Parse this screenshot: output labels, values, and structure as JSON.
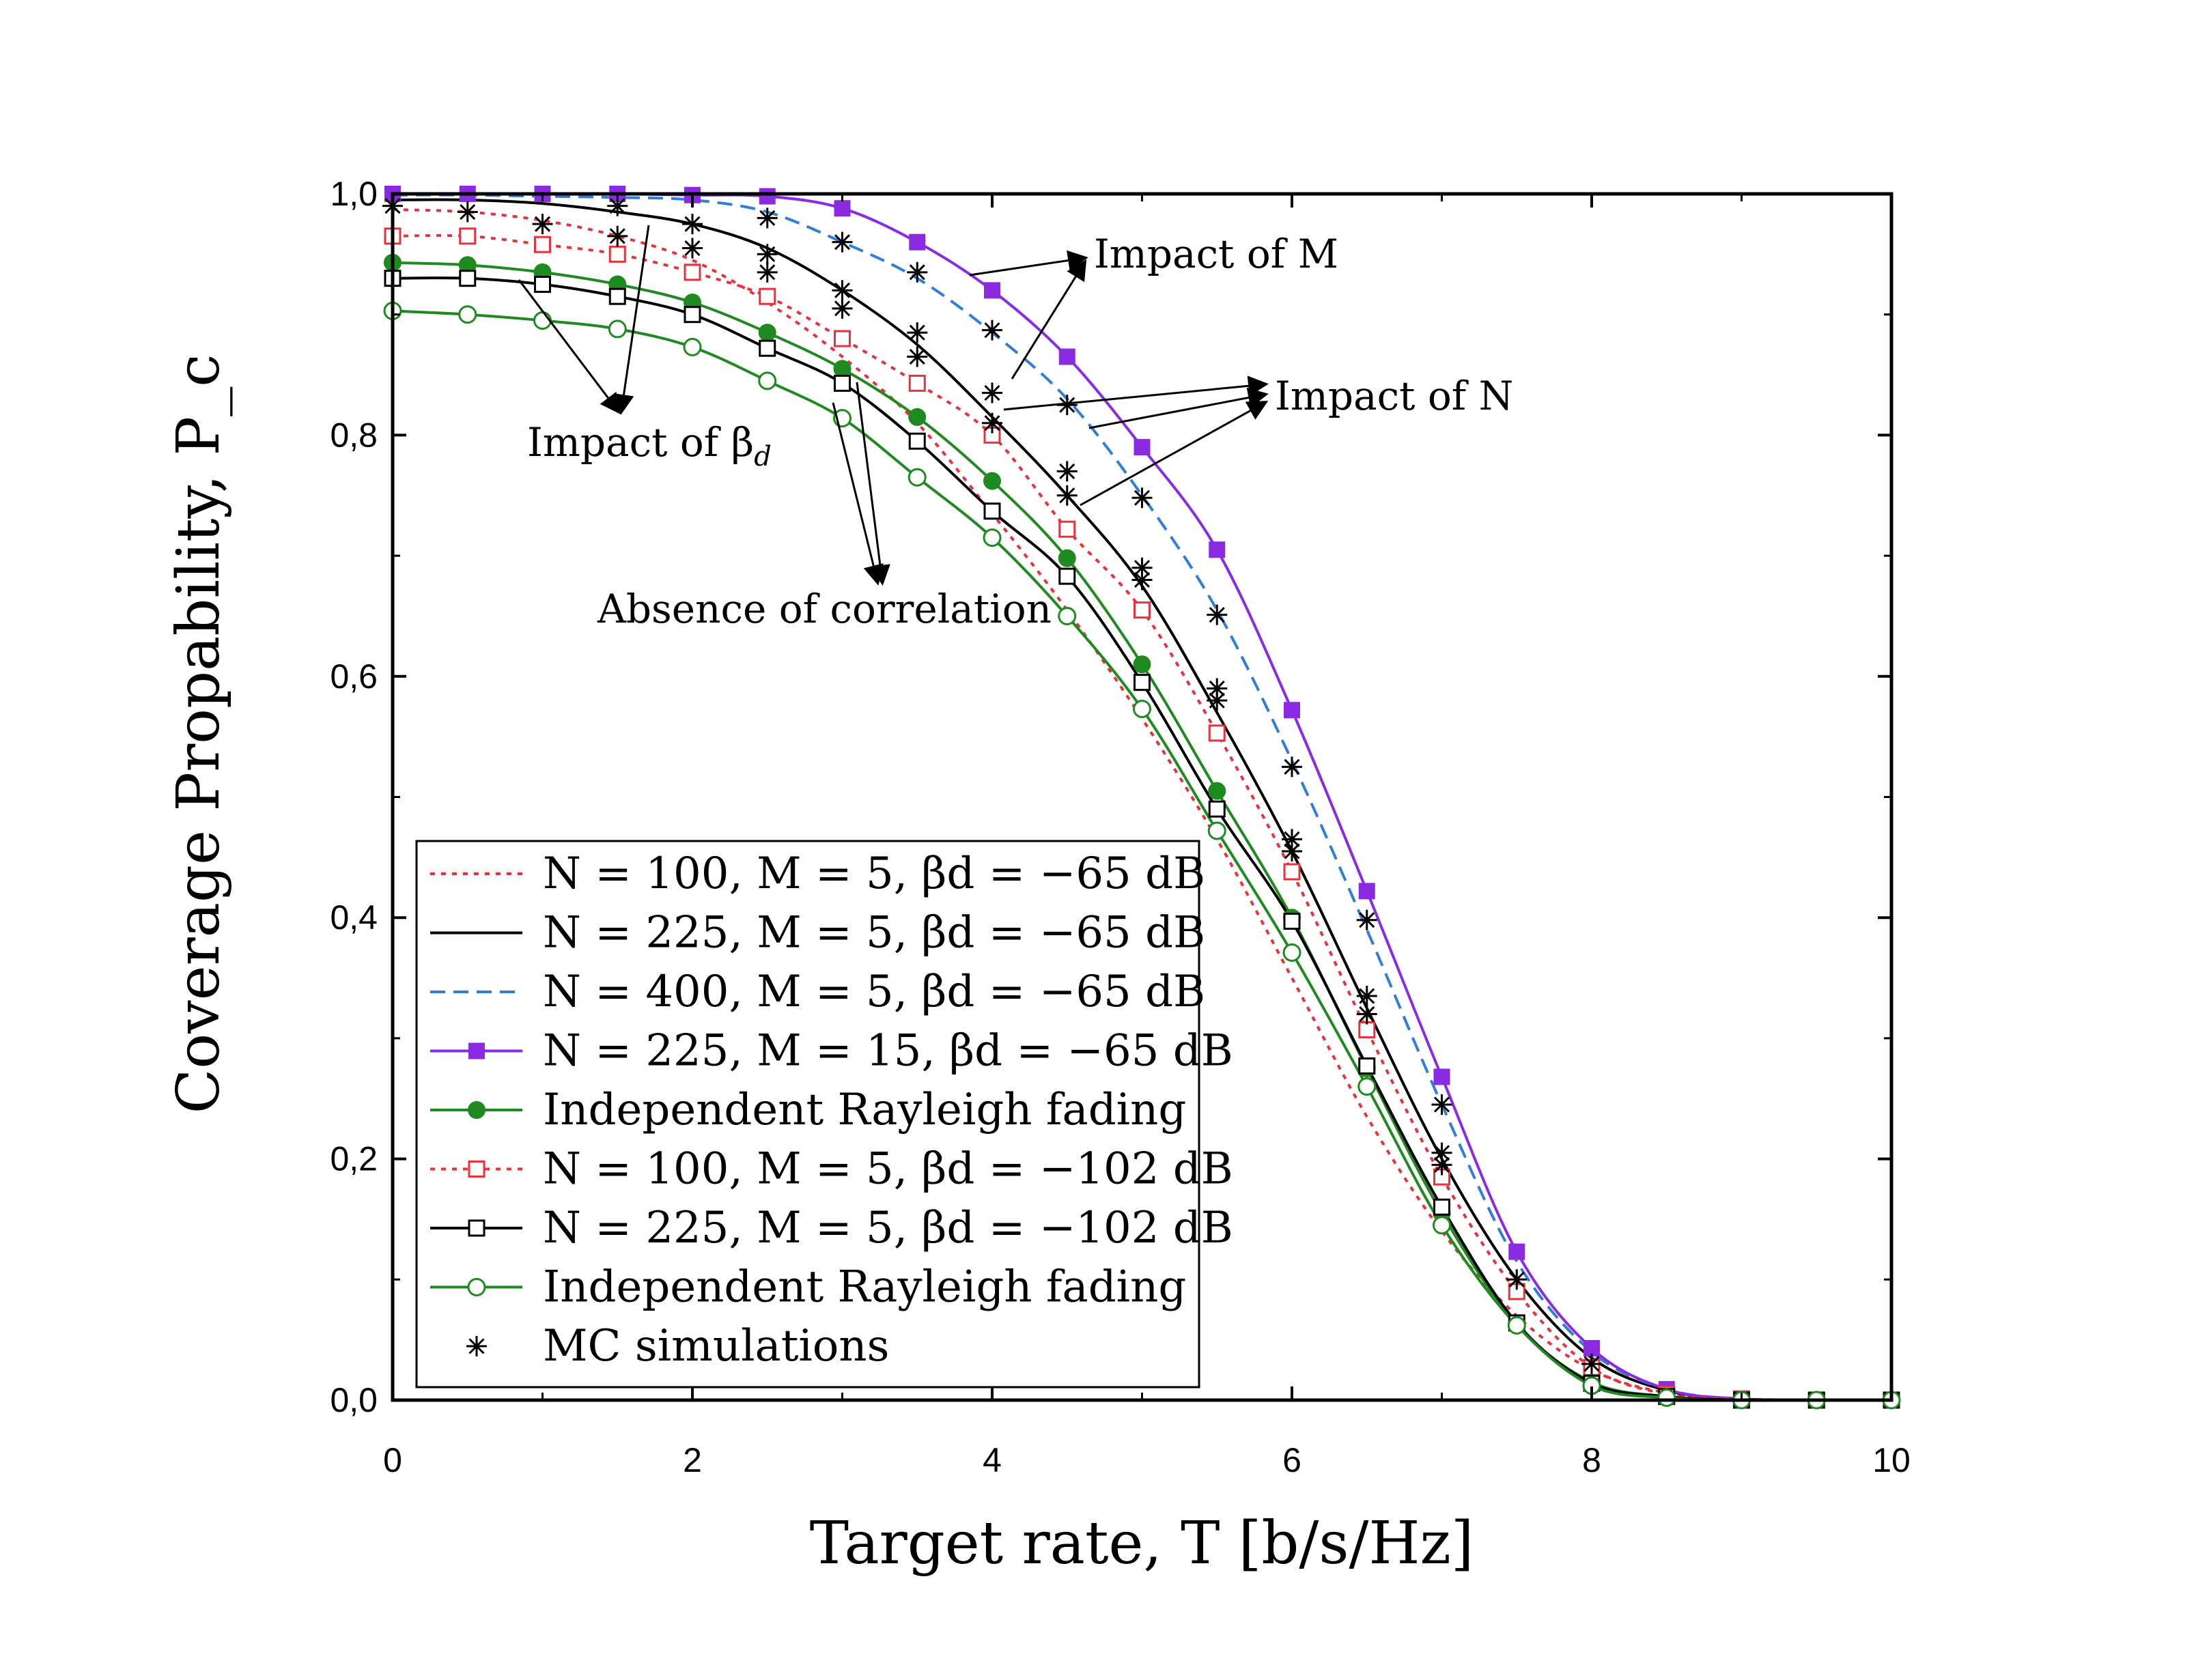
{
  "chart_data": {
    "type": "line",
    "title": "",
    "xlabel": "Target rate, T [b/s/Hz]",
    "ylabel": "Coverage Propability, P_c",
    "xlim": [
      0,
      10
    ],
    "ylim": [
      0,
      1
    ],
    "x_ticks": [
      "0",
      "2",
      "4",
      "6",
      "8",
      "10"
    ],
    "y_ticks": [
      "0,0",
      "0,2",
      "0,4",
      "0,6",
      "0,8",
      "1,0"
    ],
    "x": [
      0,
      0.5,
      1,
      1.5,
      2,
      2.5,
      3,
      3.5,
      4,
      4.5,
      5,
      5.5,
      6,
      6.5,
      7,
      7.5,
      8,
      8.5,
      9,
      9.5,
      10
    ],
    "series": [
      {
        "name": "N = 100, M = 5, βd = −65 dB",
        "style": "dotted",
        "color": "#e8313a",
        "marker": "none",
        "values": [
          0.987,
          0.985,
          0.978,
          0.965,
          0.945,
          0.91,
          0.865,
          0.81,
          0.735,
          0.655,
          0.565,
          0.465,
          0.35,
          0.235,
          0.14,
          0.07,
          0.025,
          0.006,
          0.001,
          0,
          0
        ]
      },
      {
        "name": "N = 225, M = 5, βd = −65 dB",
        "style": "solid",
        "color": "#000000",
        "marker": "none",
        "values": [
          0.995,
          0.995,
          0.992,
          0.985,
          0.975,
          0.955,
          0.92,
          0.875,
          0.815,
          0.75,
          0.675,
          0.57,
          0.455,
          0.325,
          0.2,
          0.1,
          0.035,
          0.008,
          0.001,
          0,
          0
        ]
      },
      {
        "name": "N = 400, M = 5, βd = −65 dB",
        "style": "dashed",
        "color": "#2f7ed8",
        "marker": "none",
        "values": [
          0.999,
          0.999,
          0.998,
          0.997,
          0.995,
          0.985,
          0.96,
          0.93,
          0.885,
          0.83,
          0.75,
          0.655,
          0.53,
          0.39,
          0.245,
          0.115,
          0.04,
          0.009,
          0.001,
          0,
          0
        ]
      },
      {
        "name": "N = 225, M = 15, βd = −65 dB",
        "style": "solid",
        "color": "#8a2be2",
        "marker": "filled-square",
        "values": [
          1.0,
          1.0,
          1.0,
          1.0,
          0.999,
          0.998,
          0.988,
          0.96,
          0.92,
          0.865,
          0.79,
          0.705,
          0.572,
          0.422,
          0.268,
          0.123,
          0.043,
          0.009,
          0.001,
          0,
          0
        ]
      },
      {
        "name": "Independent Rayleigh fading",
        "style": "solid",
        "color": "#1f8a1f",
        "marker": "filled-circle",
        "values": [
          0.943,
          0.941,
          0.935,
          0.925,
          0.91,
          0.885,
          0.855,
          0.815,
          0.762,
          0.698,
          0.61,
          0.505,
          0.4,
          0.275,
          0.155,
          0.063,
          0.015,
          0.003,
          0,
          0,
          0
        ]
      },
      {
        "name": "N = 100, M = 5, βd = −102 dB",
        "style": "dotted",
        "color": "#e8313a",
        "marker": "open-square",
        "values": [
          0.965,
          0.965,
          0.958,
          0.95,
          0.935,
          0.915,
          0.88,
          0.843,
          0.8,
          0.722,
          0.655,
          0.553,
          0.438,
          0.307,
          0.185,
          0.09,
          0.027,
          0.005,
          0.001,
          0,
          0
        ]
      },
      {
        "name": "N = 225, M = 5, βd = −102 dB",
        "style": "solid",
        "color": "#000000",
        "marker": "open-square",
        "values": [
          0.93,
          0.93,
          0.925,
          0.915,
          0.9,
          0.872,
          0.843,
          0.795,
          0.737,
          0.683,
          0.595,
          0.49,
          0.397,
          0.277,
          0.16,
          0.064,
          0.014,
          0.003,
          0,
          0,
          0
        ]
      },
      {
        "name": "Independent Rayleigh fading",
        "style": "solid",
        "color": "#1f8a1f",
        "marker": "open-circle",
        "values": [
          0.903,
          0.9,
          0.895,
          0.888,
          0.873,
          0.845,
          0.814,
          0.765,
          0.715,
          0.65,
          0.573,
          0.472,
          0.371,
          0.26,
          0.145,
          0.062,
          0.012,
          0.002,
          0,
          0,
          0
        ]
      }
    ],
    "mc_simulations": {
      "name": "MC simulations",
      "marker": "asterisk",
      "color": "#000000",
      "points": [
        [
          0,
          0.99
        ],
        [
          0.5,
          0.985
        ],
        [
          1,
          0.975
        ],
        [
          1.5,
          0.965
        ],
        [
          2,
          0.955
        ],
        [
          2.5,
          0.935
        ],
        [
          3,
          0.905
        ],
        [
          3.5,
          0.865
        ],
        [
          4,
          0.81
        ],
        [
          4.5,
          0.75
        ],
        [
          5,
          0.68
        ],
        [
          5.5,
          0.58
        ],
        [
          6,
          0.455
        ],
        [
          6.5,
          0.32
        ],
        [
          7,
          0.195
        ],
        [
          7.5,
          0.1
        ],
        [
          8,
          0.03
        ],
        [
          1.5,
          0.99
        ],
        [
          2,
          0.975
        ],
        [
          2.5,
          0.95
        ],
        [
          3,
          0.92
        ],
        [
          3.5,
          0.885
        ],
        [
          4,
          0.835
        ],
        [
          4.5,
          0.77
        ],
        [
          5,
          0.69
        ],
        [
          5.5,
          0.59
        ],
        [
          6,
          0.465
        ],
        [
          6.5,
          0.335
        ],
        [
          7,
          0.205
        ],
        [
          2.5,
          0.98
        ],
        [
          3,
          0.96
        ],
        [
          3.5,
          0.935
        ],
        [
          4,
          0.887
        ],
        [
          4.5,
          0.825
        ],
        [
          5,
          0.748
        ],
        [
          5.5,
          0.651
        ],
        [
          6,
          0.525
        ],
        [
          6.5,
          0.398
        ],
        [
          7,
          0.245
        ]
      ]
    },
    "annotations": {
      "impact_M": "Impact of M",
      "impact_N": "Impact of N",
      "impact_beta": "Impact of β",
      "impact_beta_sub": "d",
      "absence": "Absence of correlation"
    },
    "legend": {
      "placement": "bottom-left",
      "entries": [
        {
          "text": "N = 100, M = 5, βd = −65 dB",
          "series": 0
        },
        {
          "text": "N = 225, M = 5, βd = −65 dB",
          "series": 1
        },
        {
          "text": "N = 400, M = 5, βd = −65 dB",
          "series": 2
        },
        {
          "text": "N = 225, M = 15, βd = −65 dB",
          "series": 3
        },
        {
          "text": "Independent Rayleigh fading",
          "series": 4
        },
        {
          "text": "N = 100, M = 5, βd = −102 dB",
          "series": 5
        },
        {
          "text": "N = 225, M = 5, βd = −102 dB",
          "series": 6
        },
        {
          "text": "Independent Rayleigh fading",
          "series": 7
        },
        {
          "text": "MC simulations",
          "series": "mc"
        }
      ]
    }
  }
}
